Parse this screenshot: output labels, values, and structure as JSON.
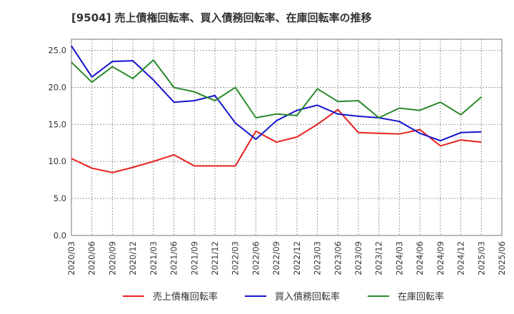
{
  "chart_data": {
    "type": "line",
    "title": "[9504]  売上債権回転率、買入債務回転率、在庫回転率の推移",
    "xlabel": "",
    "ylabel": "",
    "ylim": [
      0,
      26.5
    ],
    "yticks": [
      0,
      5,
      10,
      15,
      20,
      25
    ],
    "ytick_labels": [
      "0.0",
      "5.0",
      "10.0",
      "15.0",
      "20.0",
      "25.0"
    ],
    "grid": true,
    "legend_position": "bottom",
    "categories": [
      "2020/03",
      "2020/06",
      "2020/09",
      "2020/12",
      "2021/03",
      "2021/06",
      "2021/09",
      "2021/12",
      "2022/03",
      "2022/06",
      "2022/09",
      "2022/12",
      "2023/03",
      "2023/06",
      "2023/09",
      "2023/12",
      "2024/03",
      "2024/06",
      "2024/09",
      "2024/12",
      "2025/03",
      "2025/06"
    ],
    "series": [
      {
        "name": "売上債権回転率",
        "color": "#e8201e",
        "values": [
          10.4,
          9.1,
          8.5,
          9.2,
          10.0,
          10.9,
          9.4,
          9.4,
          9.4,
          14.1,
          12.6,
          13.3,
          15.0,
          17.0,
          13.9,
          13.8,
          13.7,
          14.3,
          12.1,
          12.9,
          12.6,
          null
        ]
      },
      {
        "name": "買入債務回転率",
        "color": "#1515d0",
        "values": [
          25.6,
          21.4,
          23.5,
          23.6,
          21.0,
          18.0,
          18.2,
          18.9,
          15.2,
          13.0,
          15.5,
          16.9,
          17.6,
          16.4,
          16.1,
          15.9,
          15.4,
          13.8,
          12.8,
          13.9,
          14.0,
          null
        ]
      },
      {
        "name": "在庫回転率",
        "color": "#2a8a2a",
        "values": [
          23.4,
          20.7,
          22.8,
          21.2,
          23.7,
          20.0,
          19.4,
          18.2,
          20.0,
          15.9,
          16.4,
          16.2,
          19.8,
          18.1,
          18.2,
          15.9,
          17.2,
          16.9,
          18.0,
          16.3,
          18.7,
          null
        ]
      }
    ]
  }
}
